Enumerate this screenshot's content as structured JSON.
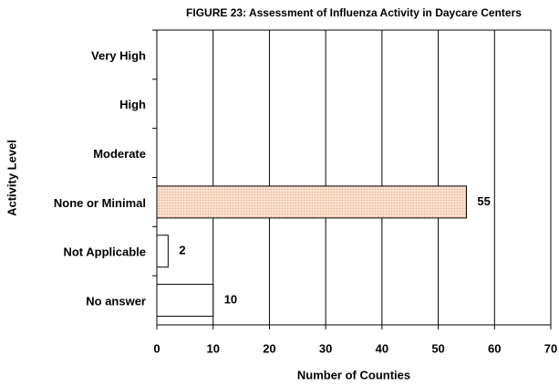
{
  "chart_data": {
    "type": "hbar",
    "title": "FIGURE 23: Assessment of Influenza Activity in Daycare Centers",
    "x_label": "Number of Counties",
    "y_label": "Activity Level",
    "categories": [
      "Very High",
      "High",
      "Moderate",
      "None or Minimal",
      "Not Applicable",
      "No answer"
    ],
    "values": [
      null,
      null,
      null,
      55,
      2,
      10
    ],
    "colors": [
      "#ffffff",
      "#ffffff",
      "#ffffff",
      "#fbe0cc",
      "#ffffff",
      "#ffffff"
    ],
    "xlim": [
      0,
      70
    ],
    "xticks": [
      0,
      10,
      20,
      30,
      40,
      50,
      60,
      70
    ],
    "grid": true
  }
}
